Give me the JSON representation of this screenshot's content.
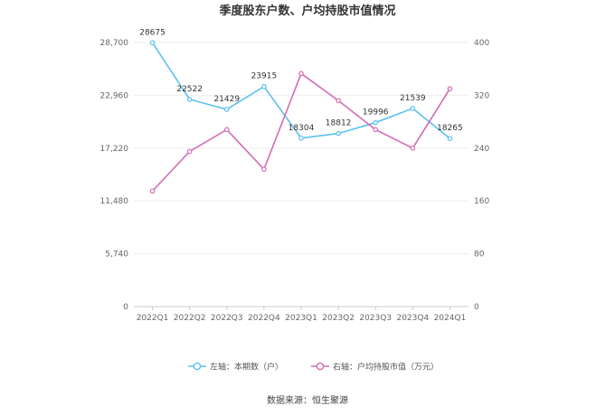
{
  "chart_data": {
    "type": "line",
    "title": "季度股东户数、户均持股市值情况",
    "categories": [
      "2022Q1",
      "2022Q2",
      "2022Q3",
      "2022Q4",
      "2023Q1",
      "2023Q2",
      "2023Q3",
      "2023Q4",
      "2024Q1"
    ],
    "left_axis": {
      "min": 0,
      "max": 28700,
      "ticks": [
        0,
        5740,
        11480,
        17220,
        22960,
        28700
      ],
      "tick_labels": [
        "0",
        "5,740",
        "11,480",
        "17,220",
        "22,960",
        "28,700"
      ]
    },
    "right_axis": {
      "min": 0,
      "max": 400,
      "ticks": [
        0,
        80,
        160,
        240,
        320,
        400
      ],
      "tick_labels": [
        "0",
        "80",
        "160",
        "240",
        "320",
        "400"
      ]
    },
    "series": [
      {
        "name": "左轴：本期数（户）",
        "axis": "left",
        "color": "#5bc0f0",
        "values": [
          28675,
          22522,
          21429,
          23915,
          18304,
          18812,
          19996,
          21539,
          18265
        ],
        "labels": [
          "28675",
          "22522",
          "21429",
          "23915",
          "18304",
          "18812",
          "19996",
          "21539",
          "18265"
        ]
      },
      {
        "name": "右轴：户均持股市值（万元）",
        "axis": "right",
        "color": "#d36bb4",
        "values": [
          175,
          235,
          268,
          208,
          353,
          312,
          268,
          240,
          330
        ]
      }
    ],
    "grid": true,
    "legend_position": "bottom"
  },
  "source_text": "数据来源：恒生聚源"
}
